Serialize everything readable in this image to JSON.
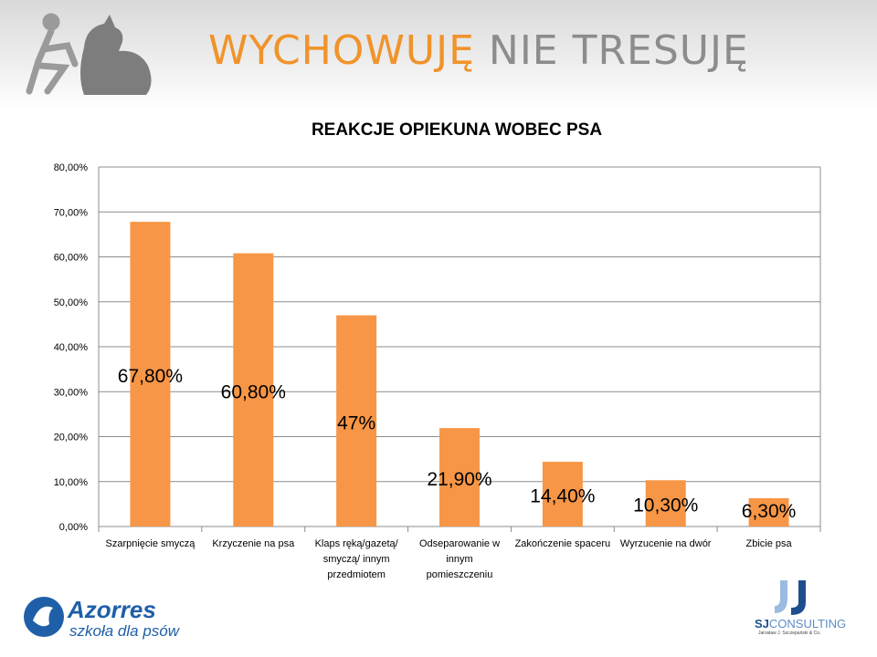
{
  "header": {
    "title_part1": "WYCHOWUJĘ",
    "title_part2": "NIE TRESUJĘ",
    "logo_icon": "person-with-dog-icon"
  },
  "colors": {
    "accent": "#f0932b",
    "bar": "#f79646",
    "title_gray": "#8c8c8c",
    "grid": "#8c8c8c"
  },
  "chart_data": {
    "type": "bar",
    "title": "REAKCJE OPIEKUNA WOBEC PSA",
    "xlabel": "",
    "ylabel": "",
    "ylim": [
      0,
      80
    ],
    "yticks": [
      0,
      10,
      20,
      30,
      40,
      50,
      60,
      70,
      80
    ],
    "ytick_labels": [
      "0,00%",
      "10,00%",
      "20,00%",
      "30,00%",
      "40,00%",
      "50,00%",
      "60,00%",
      "70,00%",
      "80,00%"
    ],
    "grid": true,
    "legend": "none",
    "categories": [
      [
        "Szarpnięcie smyczą"
      ],
      [
        "Krzyczenie na psa"
      ],
      [
        "Klaps ręką/gazetą/",
        "smyczą/ innym",
        "przedmiotem"
      ],
      [
        "Odseparowanie w",
        "innym",
        "pomieszczeniu"
      ],
      [
        "Zakończenie spaceru"
      ],
      [
        "Wyrzucenie na dwór"
      ],
      [
        "Zbicie psa"
      ]
    ],
    "values": [
      67.8,
      60.8,
      47,
      21.9,
      14.4,
      10.3,
      6.3
    ],
    "data_labels": [
      "67,80%",
      "60,80%",
      "47%",
      "21,90%",
      "14,40%",
      "10,30%",
      "6,30%"
    ]
  },
  "footer": {
    "left_brand": "Azorres",
    "left_tagline": "szkoła dla psów",
    "right_brand_bold": "SJ",
    "right_brand_rest": "CONSULTING",
    "right_sub": "Jarosław J. Szczepański & Co."
  }
}
